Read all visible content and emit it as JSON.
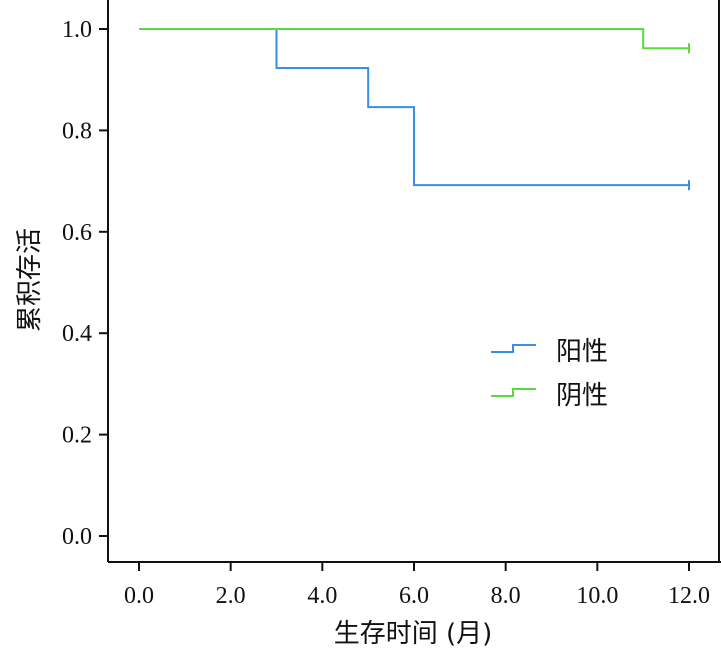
{
  "chart_data": {
    "type": "line",
    "title": "",
    "xlabel": "生存时间 (月)",
    "ylabel": "累积存活",
    "xlim": [
      0,
      12
    ],
    "ylim": [
      0,
      1
    ],
    "x_ticks": [
      "0.0",
      "2.0",
      "4.0",
      "6.0",
      "8.0",
      "10.0",
      "12.0"
    ],
    "y_ticks": [
      "0.0",
      "0.2",
      "0.4",
      "0.6",
      "0.8",
      "1.0"
    ],
    "grid": false,
    "legend_position": "right-middle",
    "series": [
      {
        "name": "阳性",
        "color": "#3a8ee6",
        "step": true,
        "x": [
          0,
          3,
          5,
          6,
          12
        ],
        "y": [
          1.0,
          0.923,
          0.846,
          0.692,
          0.692
        ],
        "censored_at": [
          12
        ]
      },
      {
        "name": "阴性",
        "color": "#5bd93f",
        "step": true,
        "x": [
          0,
          11,
          12
        ],
        "y": [
          1.0,
          0.962,
          0.962
        ],
        "censored_at": [
          12
        ]
      }
    ]
  }
}
